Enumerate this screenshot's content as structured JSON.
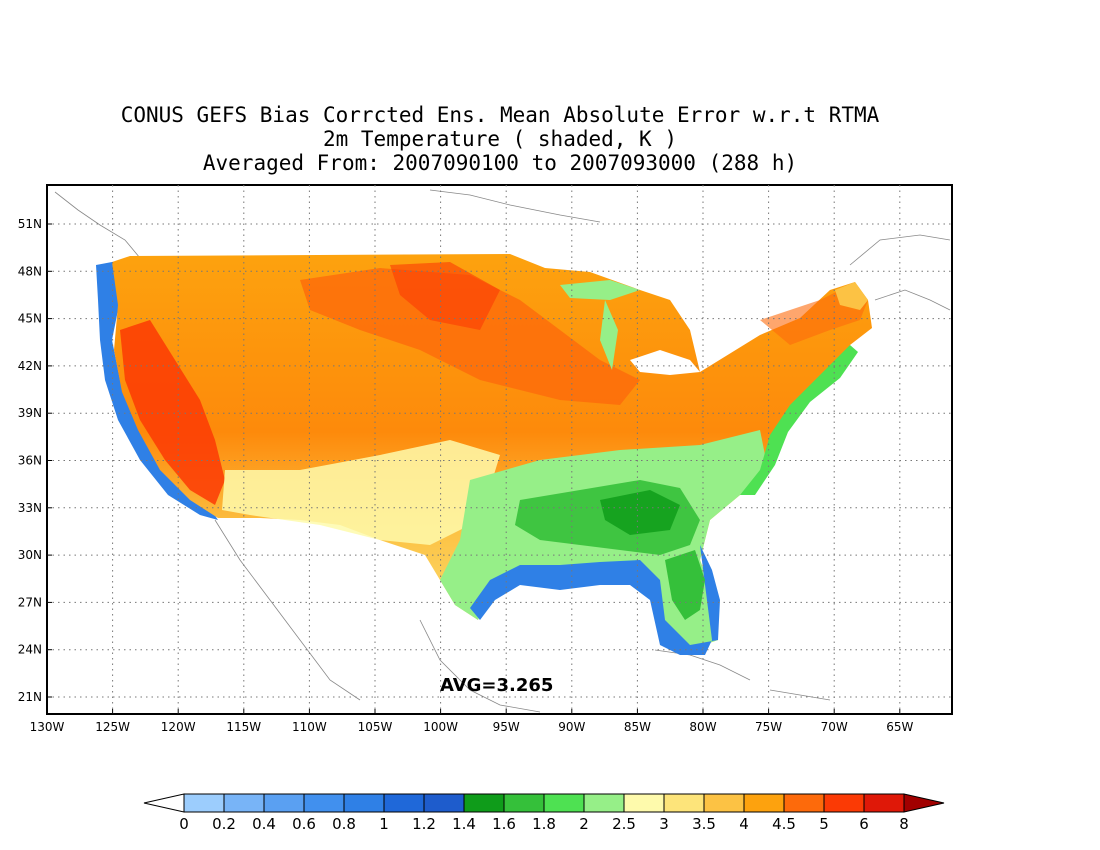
{
  "title": {
    "line1": "CONUS GEFS Bias Corrcted Ens. Mean Absolute Error w.r.t RTMA",
    "line2": "2m Temperature ( shaded, K )",
    "line3": "Averaged From: 2007090100 to 2007093000 (288 h)"
  },
  "map": {
    "lat_labels": [
      "51N",
      "48N",
      "45N",
      "42N",
      "39N",
      "36N",
      "33N",
      "30N",
      "27N",
      "24N",
      "21N"
    ],
    "lon_labels": [
      "130W",
      "125W",
      "120W",
      "115W",
      "110W",
      "105W",
      "100W",
      "95W",
      "90W",
      "85W",
      "80W",
      "75W",
      "70W",
      "65W"
    ],
    "avg_text": "AVG=3.265",
    "grid": true
  },
  "colorbar": {
    "labels": [
      "0",
      "0.2",
      "0.4",
      "0.6",
      "0.8",
      "1",
      "1.2",
      "1.4",
      "1.6",
      "1.8",
      "2",
      "2.5",
      "3",
      "3.5",
      "4",
      "4.5",
      "5",
      "6",
      "8"
    ],
    "colors": [
      "#9ccdfd",
      "#78b4f7",
      "#5aa0f2",
      "#4190ee",
      "#2f80e6",
      "#1f68d9",
      "#1e5ccc",
      "#0f9c1a",
      "#35c03a",
      "#4ee152",
      "#96ef88",
      "#fefaac",
      "#fde47a",
      "#fcc244",
      "#fda20e",
      "#fd6a0b",
      "#fb3a05",
      "#df1808"
    ],
    "under_color": "#ffffff",
    "over_color": "#a10000"
  }
}
